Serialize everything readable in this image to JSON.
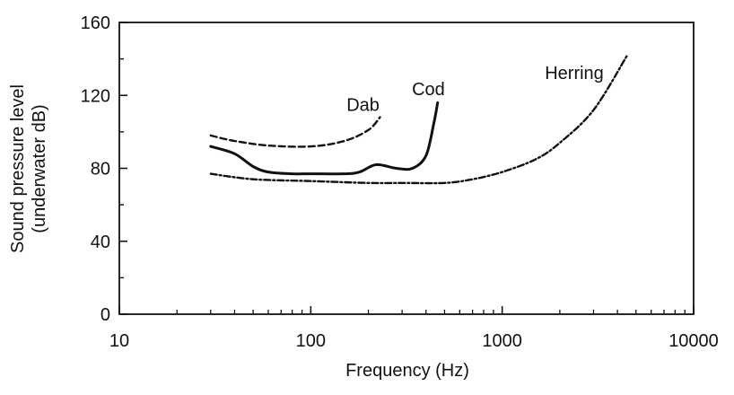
{
  "chart_data": {
    "type": "line",
    "title": "",
    "xlabel": "Frequency (Hz)",
    "ylabel_line1": "Sound pressure level",
    "ylabel_line2": "(underwater dB)",
    "x_scale": "log",
    "xlim": [
      10,
      10000
    ],
    "ylim": [
      0,
      160
    ],
    "x_ticks": [
      10,
      100,
      1000,
      10000
    ],
    "x_tick_labels": [
      "10",
      "100",
      "1000",
      "10000"
    ],
    "y_ticks": [
      0,
      40,
      80,
      120,
      160
    ],
    "y_tick_labels": [
      "0",
      "40",
      "80",
      "120",
      "160"
    ],
    "grid": false,
    "series": [
      {
        "name": "Dab",
        "style": "dashed",
        "points": [
          [
            30,
            98
          ],
          [
            40,
            95
          ],
          [
            60,
            92.5
          ],
          [
            100,
            92
          ],
          [
            150,
            95
          ],
          [
            200,
            101
          ],
          [
            230,
            108
          ]
        ]
      },
      {
        "name": "Cod",
        "style": "solid",
        "points": [
          [
            30,
            92
          ],
          [
            40,
            88
          ],
          [
            50,
            81
          ],
          [
            60,
            78
          ],
          [
            80,
            77
          ],
          [
            100,
            77
          ],
          [
            150,
            77
          ],
          [
            180,
            78
          ],
          [
            220,
            82
          ],
          [
            280,
            80
          ],
          [
            340,
            80
          ],
          [
            400,
            87
          ],
          [
            440,
            105
          ],
          [
            460,
            116
          ]
        ]
      },
      {
        "name": "Herring",
        "style": "dash-dot",
        "points": [
          [
            30,
            77
          ],
          [
            50,
            74
          ],
          [
            100,
            73
          ],
          [
            200,
            72
          ],
          [
            300,
            72
          ],
          [
            500,
            72
          ],
          [
            700,
            74
          ],
          [
            1000,
            78
          ],
          [
            1500,
            85
          ],
          [
            2000,
            94
          ],
          [
            3000,
            112
          ],
          [
            4500,
            142
          ]
        ]
      }
    ]
  }
}
